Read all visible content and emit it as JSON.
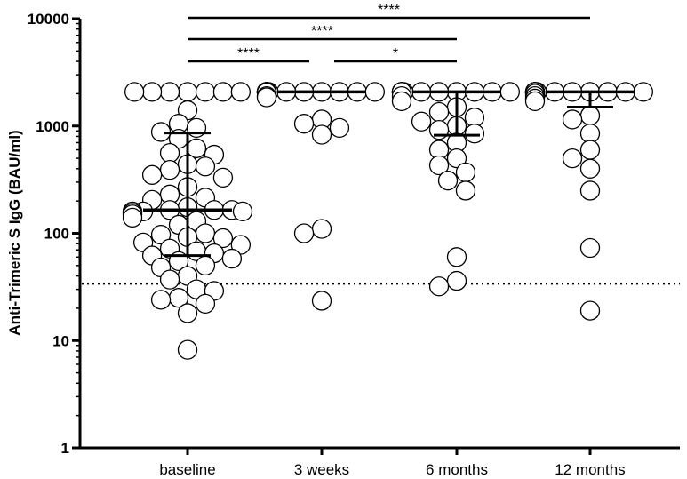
{
  "chart_data": {
    "type": "scatter",
    "title": "",
    "xlabel": "",
    "ylabel": "Anti-Trimeric S IgG (BAU/ml)",
    "y_scale": "log",
    "ylim": [
      1,
      10000
    ],
    "y_ticks": [
      "1",
      "10",
      "100",
      "1000",
      "10000"
    ],
    "grid": false,
    "legend": "none",
    "categories": [
      "baseline",
      "3 weeks",
      "6 months",
      "12 months"
    ],
    "threshold_line": {
      "value": 33.8,
      "style": "dotted"
    },
    "summary": [
      {
        "category": "baseline",
        "median": 165,
        "q1": 62,
        "q3": 860
      },
      {
        "category": "3 weeks",
        "median": 2080,
        "q1": 2080,
        "q3": 2080
      },
      {
        "category": "6 months",
        "median": 2080,
        "q1": 820,
        "q3": 2080
      },
      {
        "category": "12 months",
        "median": 2080,
        "q1": 1500,
        "q3": 2080
      }
    ],
    "series": [
      {
        "category": "baseline",
        "values": [
          2080,
          2080,
          2080,
          2080,
          2080,
          2080,
          2080,
          1400,
          1050,
          960,
          880,
          760,
          620,
          560,
          540,
          440,
          420,
          390,
          350,
          330,
          270,
          230,
          215,
          205,
          175,
          165,
          165,
          165,
          160,
          160,
          160,
          155,
          150,
          140,
          130,
          120,
          100,
          97,
          92,
          90,
          82,
          78,
          72,
          68,
          65,
          62,
          58,
          55,
          50,
          48,
          40,
          37,
          30,
          29,
          25,
          24,
          22,
          18,
          8.2
        ]
      },
      {
        "category": "3 weeks",
        "values": [
          2080,
          2080,
          2080,
          2080,
          2080,
          2080,
          2080,
          2080,
          2080,
          2080,
          2080,
          2080,
          2080,
          2080,
          2080,
          2080,
          2080,
          2080,
          2080,
          2080,
          2080,
          2080,
          2050,
          1900,
          1850,
          1150,
          1050,
          960,
          830,
          110,
          100,
          23.5
        ]
      },
      {
        "category": "6 months",
        "values": [
          2080,
          2080,
          2080,
          2080,
          2080,
          2080,
          2080,
          2080,
          2080,
          2080,
          2080,
          2080,
          2080,
          2080,
          2080,
          2080,
          2080,
          2080,
          2080,
          2080,
          1900,
          1700,
          1500,
          1350,
          1200,
          1100,
          1000,
          920,
          850,
          700,
          600,
          500,
          430,
          370,
          310,
          250,
          60,
          36,
          32
        ]
      },
      {
        "category": "12 months",
        "values": [
          2080,
          2080,
          2080,
          2080,
          2080,
          2080,
          2080,
          2080,
          2080,
          2080,
          2080,
          2080,
          2080,
          2080,
          2080,
          2080,
          2080,
          2080,
          2080,
          2080,
          2080,
          2080,
          2000,
          1900,
          1800,
          1700,
          1250,
          1150,
          850,
          600,
          500,
          400,
          250,
          73,
          19
        ]
      }
    ],
    "significance": [
      {
        "from": "baseline",
        "to": "12 months",
        "label": "****"
      },
      {
        "from": "baseline",
        "to": "6 months",
        "label": "****"
      },
      {
        "from": "baseline",
        "to": "3 weeks",
        "label": "****"
      },
      {
        "from": "3 weeks",
        "to": "6 months",
        "label": "*"
      }
    ]
  }
}
